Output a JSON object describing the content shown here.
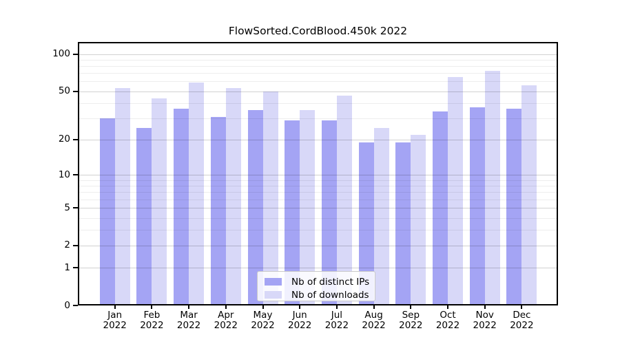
{
  "title": "FlowSorted.CordBlood.450k 2022",
  "chart_data": {
    "type": "bar",
    "title": "FlowSorted.CordBlood.450k 2022",
    "categories": [
      "Jan",
      "Feb",
      "Mar",
      "Apr",
      "May",
      "Jun",
      "Jul",
      "Aug",
      "Sep",
      "Oct",
      "Nov",
      "Dec"
    ],
    "year": "2022",
    "series": [
      {
        "name": "Nb of distinct IPs",
        "color": "#a4a4f4",
        "values": [
          30,
          25,
          36,
          31,
          35,
          29,
          29,
          19,
          19,
          34,
          37,
          36
        ]
      },
      {
        "name": "Nb of downloads",
        "color": "#d8d8f8",
        "values": [
          53,
          44,
          59,
          53,
          50,
          35,
          46,
          25,
          22,
          65,
          73,
          56
        ]
      }
    ],
    "xlabel": "",
    "ylabel": "",
    "yscale": "log1p",
    "ylim": [
      0,
      125
    ],
    "yticks": [
      0,
      1,
      2,
      5,
      10,
      20,
      50,
      100
    ],
    "yticks_minor": [
      3,
      4,
      6,
      7,
      8,
      9,
      30,
      40,
      60,
      70,
      80,
      90
    ],
    "grid": true,
    "grid_major_color": "rgba(0,0,0,0.18)",
    "grid_minor_color": "rgba(0,0,0,0.07)",
    "axis_color": "#000000",
    "background_color": "#ffffff",
    "legend_position": "lower center",
    "legend": [
      "Nb of distinct IPs",
      "Nb of downloads"
    ]
  }
}
